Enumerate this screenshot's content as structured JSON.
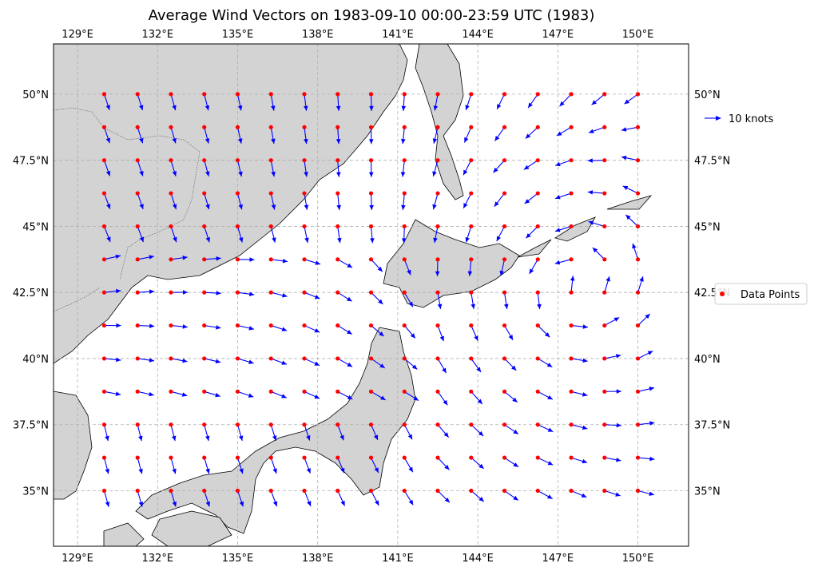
{
  "title": "Average Wind Vectors on 1983-09-10 00:00-23:59 UTC (1983)",
  "map": {
    "lon_range": [
      128.1,
      151.9
    ],
    "lat_range": [
      32.9,
      51.9
    ],
    "lon_ticks": [
      129,
      132,
      135,
      138,
      141,
      144,
      147,
      150
    ],
    "lat_ticks": [
      35,
      37.5,
      40,
      42.5,
      45,
      47.5,
      50
    ],
    "lon_tick_labels": [
      "129°E",
      "132°E",
      "135°E",
      "138°E",
      "141°E",
      "144°E",
      "147°E",
      "150°E"
    ],
    "lat_tick_labels": [
      "35°N",
      "37.5°N",
      "40°N",
      "42.5°N",
      "45°N",
      "47.5°N",
      "50°N"
    ],
    "colors": {
      "land": "#d3d3d3",
      "vector": "#0000ff",
      "point": "#ff0000",
      "grid": "#b0b0b0"
    }
  },
  "legend": {
    "quiver_key_label": "10 knots",
    "points_label": "Data Points"
  },
  "grid_points": {
    "lon_start": 130,
    "lon_end": 150,
    "lat_start": 35,
    "lat_end": 50,
    "step": 1.25
  }
}
